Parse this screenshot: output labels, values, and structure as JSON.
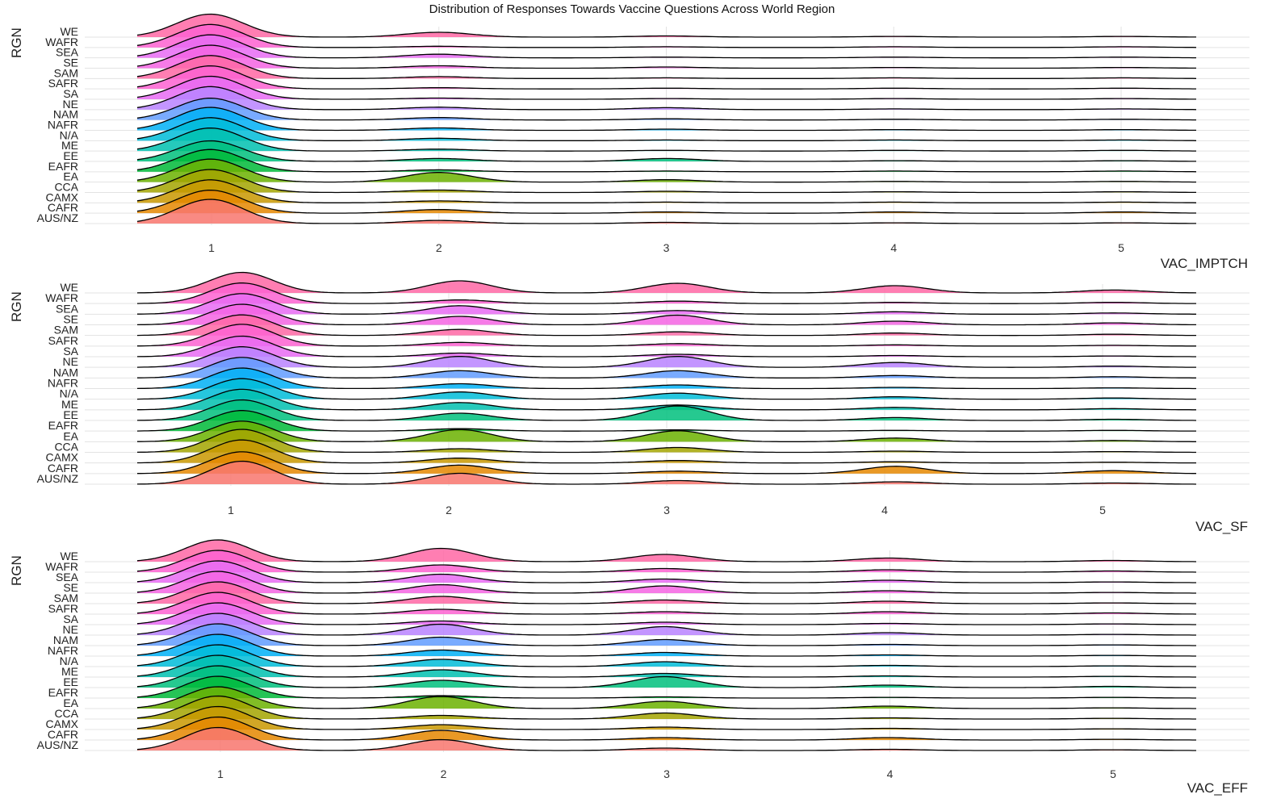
{
  "title": "Distribution of Responses Towards Vaccine Questions Across World Region",
  "regions": [
    "AUS/NZ",
    "CAFR",
    "CAMX",
    "CCA",
    "EA",
    "EAFR",
    "EE",
    "ME",
    "N/A",
    "NAFR",
    "NAM",
    "NE",
    "SA",
    "SAFR",
    "SAM",
    "SE",
    "SEA",
    "WAFR",
    "WE"
  ],
  "colors": [
    "#F8766D",
    "#E58700",
    "#C99800",
    "#A3A500",
    "#6BB100",
    "#00BA38",
    "#00BF7D",
    "#00C0AF",
    "#00BCD8",
    "#00B0F6",
    "#619CFF",
    "#B983FF",
    "#E76BF3",
    "#FD61D1",
    "#FF67A4",
    "#F564E3",
    "#E76BF3",
    "#FD61D1",
    "#FF67A4"
  ],
  "chart_data": [
    {
      "type": "ridgeline",
      "xlabel": "VAC_IMPTCH",
      "ylabel": "RGN",
      "x_ticks": [
        1,
        2,
        3,
        4,
        5
      ],
      "xlim": [
        0.68,
        5.32
      ],
      "series": [
        {
          "name": "AUS/NZ",
          "values": [
            1.0,
            0.13,
            0.05,
            0.03,
            0.03
          ]
        },
        {
          "name": "CAFR",
          "values": [
            0.95,
            0.15,
            0.05,
            0.05,
            0.05
          ]
        },
        {
          "name": "CAMX",
          "values": [
            0.95,
            0.08,
            0.03,
            0.03,
            0.03
          ]
        },
        {
          "name": "CCA",
          "values": [
            0.95,
            0.1,
            0.05,
            0.03,
            0.03
          ]
        },
        {
          "name": "EA",
          "values": [
            0.95,
            0.4,
            0.1,
            0.03,
            0.03
          ]
        },
        {
          "name": "EAFR",
          "values": [
            0.92,
            0.08,
            0.03,
            0.03,
            0.03
          ]
        },
        {
          "name": "EE",
          "values": [
            0.85,
            0.12,
            0.12,
            0.03,
            0.03
          ]
        },
        {
          "name": "ME",
          "values": [
            0.95,
            0.08,
            0.03,
            0.03,
            0.03
          ]
        },
        {
          "name": "N/A",
          "values": [
            0.95,
            0.1,
            0.03,
            0.03,
            0.03
          ]
        },
        {
          "name": "NAFR",
          "values": [
            0.95,
            0.1,
            0.05,
            0.03,
            0.03
          ]
        },
        {
          "name": "NAM",
          "values": [
            0.9,
            0.1,
            0.05,
            0.03,
            0.03
          ]
        },
        {
          "name": "NE",
          "values": [
            0.95,
            0.1,
            0.08,
            0.03,
            0.03
          ]
        },
        {
          "name": "SA",
          "values": [
            0.95,
            0.05,
            0.03,
            0.03,
            0.03
          ]
        },
        {
          "name": "SAFR",
          "values": [
            0.95,
            0.05,
            0.03,
            0.03,
            0.03
          ]
        },
        {
          "name": "SAM",
          "values": [
            0.95,
            0.08,
            0.03,
            0.03,
            0.03
          ]
        },
        {
          "name": "SE",
          "values": [
            0.95,
            0.1,
            0.05,
            0.03,
            0.03
          ]
        },
        {
          "name": "SEA",
          "values": [
            0.95,
            0.15,
            0.03,
            0.03,
            0.03
          ]
        },
        {
          "name": "WAFR",
          "values": [
            0.95,
            0.05,
            0.03,
            0.03,
            0.03
          ]
        },
        {
          "name": "WE",
          "values": [
            0.95,
            0.2,
            0.05,
            0.03,
            0.03
          ]
        }
      ]
    },
    {
      "type": "ridgeline",
      "xlabel": "VAC_SF",
      "ylabel": "RGN",
      "x_ticks": [
        1,
        2,
        3,
        4,
        5
      ],
      "xlim": [
        0.52,
        5.38
      ],
      "series": [
        {
          "name": "AUS/NZ",
          "values": [
            0.95,
            0.45,
            0.15,
            0.1,
            0.05
          ]
        },
        {
          "name": "CAFR",
          "values": [
            0.9,
            0.35,
            0.1,
            0.3,
            0.12
          ]
        },
        {
          "name": "CAMX",
          "values": [
            0.95,
            0.2,
            0.1,
            0.05,
            0.03
          ]
        },
        {
          "name": "CCA",
          "values": [
            0.95,
            0.15,
            0.2,
            0.05,
            0.03
          ]
        },
        {
          "name": "EA",
          "values": [
            0.85,
            0.5,
            0.45,
            0.15,
            0.05
          ]
        },
        {
          "name": "EAFR",
          "values": [
            0.85,
            0.1,
            0.05,
            0.03,
            0.03
          ]
        },
        {
          "name": "EE",
          "values": [
            0.85,
            0.3,
            0.6,
            0.12,
            0.05
          ]
        },
        {
          "name": "ME",
          "values": [
            0.85,
            0.3,
            0.2,
            0.1,
            0.05
          ]
        },
        {
          "name": "N/A",
          "values": [
            0.85,
            0.3,
            0.25,
            0.1,
            0.05
          ]
        },
        {
          "name": "NAFR",
          "values": [
            0.85,
            0.2,
            0.15,
            0.05,
            0.03
          ]
        },
        {
          "name": "NAM",
          "values": [
            0.85,
            0.3,
            0.3,
            0.1,
            0.05
          ]
        },
        {
          "name": "NE",
          "values": [
            0.85,
            0.45,
            0.45,
            0.2,
            0.05
          ]
        },
        {
          "name": "SA",
          "values": [
            0.85,
            0.15,
            0.1,
            0.05,
            0.03
          ]
        },
        {
          "name": "SAFR",
          "values": [
            0.9,
            0.15,
            0.1,
            0.05,
            0.03
          ]
        },
        {
          "name": "SAM",
          "values": [
            0.85,
            0.25,
            0.15,
            0.1,
            0.05
          ]
        },
        {
          "name": "SE",
          "values": [
            0.85,
            0.35,
            0.4,
            0.15,
            0.08
          ]
        },
        {
          "name": "SEA",
          "values": [
            0.85,
            0.35,
            0.15,
            0.1,
            0.05
          ]
        },
        {
          "name": "WAFR",
          "values": [
            0.85,
            0.15,
            0.1,
            0.05,
            0.05
          ]
        },
        {
          "name": "WE",
          "values": [
            0.85,
            0.5,
            0.4,
            0.3,
            0.12
          ]
        }
      ]
    },
    {
      "type": "ridgeline",
      "xlabel": "VAC_EFF",
      "ylabel": "RGN",
      "x_ticks": [
        1,
        2,
        3,
        4,
        5
      ],
      "xlim": [
        0.64,
        5.38
      ],
      "series": [
        {
          "name": "AUS/NZ",
          "values": [
            0.95,
            0.45,
            0.1,
            0.05,
            0.03
          ]
        },
        {
          "name": "CAFR",
          "values": [
            0.95,
            0.4,
            0.1,
            0.1,
            0.03
          ]
        },
        {
          "name": "CAMX",
          "values": [
            0.95,
            0.2,
            0.1,
            0.05,
            0.03
          ]
        },
        {
          "name": "CCA",
          "values": [
            0.95,
            0.15,
            0.25,
            0.05,
            0.03
          ]
        },
        {
          "name": "EA",
          "values": [
            0.9,
            0.5,
            0.3,
            0.1,
            0.03
          ]
        },
        {
          "name": "EAFR",
          "values": [
            0.9,
            0.1,
            0.05,
            0.03,
            0.03
          ]
        },
        {
          "name": "EE",
          "values": [
            0.9,
            0.3,
            0.45,
            0.1,
            0.05
          ]
        },
        {
          "name": "ME",
          "values": [
            0.9,
            0.3,
            0.15,
            0.05,
            0.03
          ]
        },
        {
          "name": "N/A",
          "values": [
            0.9,
            0.3,
            0.2,
            0.05,
            0.03
          ]
        },
        {
          "name": "NAFR",
          "values": [
            0.9,
            0.25,
            0.15,
            0.05,
            0.03
          ]
        },
        {
          "name": "NAM",
          "values": [
            0.9,
            0.35,
            0.25,
            0.05,
            0.03
          ]
        },
        {
          "name": "NE",
          "values": [
            0.9,
            0.45,
            0.35,
            0.1,
            0.03
          ]
        },
        {
          "name": "SA",
          "values": [
            0.9,
            0.15,
            0.1,
            0.05,
            0.03
          ]
        },
        {
          "name": "SAFR",
          "values": [
            0.9,
            0.2,
            0.1,
            0.1,
            0.05
          ]
        },
        {
          "name": "SAM",
          "values": [
            0.9,
            0.3,
            0.15,
            0.1,
            0.03
          ]
        },
        {
          "name": "SE",
          "values": [
            0.9,
            0.35,
            0.3,
            0.1,
            0.03
          ]
        },
        {
          "name": "SEA",
          "values": [
            0.9,
            0.35,
            0.15,
            0.1,
            0.03
          ]
        },
        {
          "name": "WAFR",
          "values": [
            0.9,
            0.3,
            0.15,
            0.1,
            0.05
          ]
        },
        {
          "name": "WE",
          "values": [
            0.9,
            0.55,
            0.3,
            0.15,
            0.05
          ]
        }
      ]
    }
  ]
}
